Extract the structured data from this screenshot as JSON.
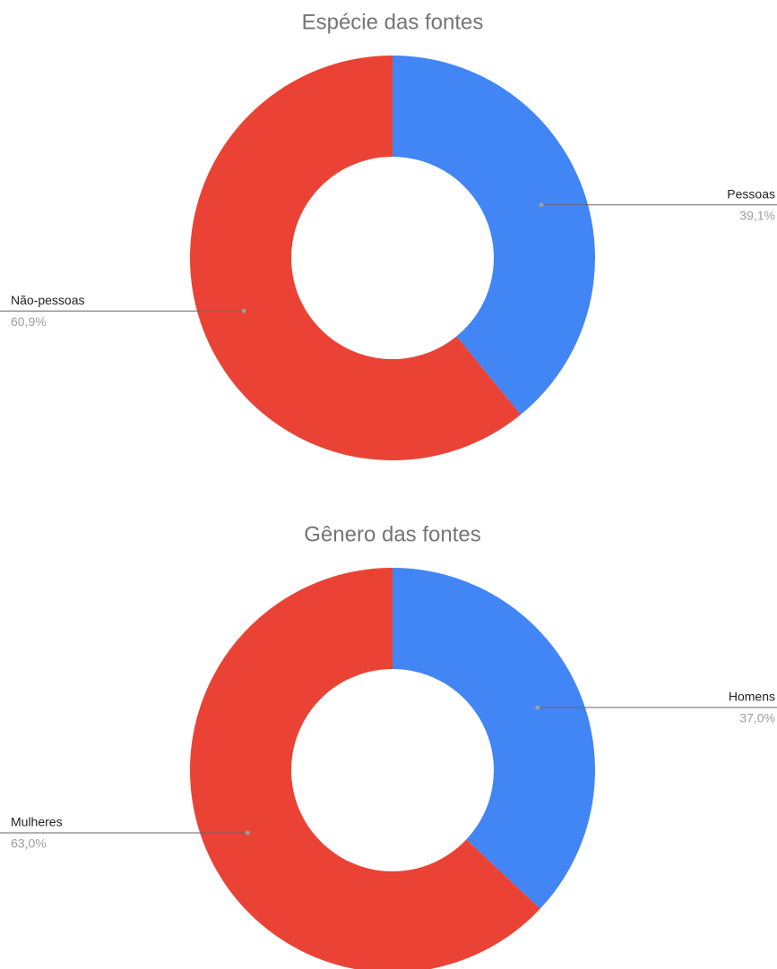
{
  "chart_data": [
    {
      "type": "pie",
      "title": "Espécie das fontes",
      "categories": [
        "Pessoas",
        "Não-pessoas"
      ],
      "values": [
        39.1,
        60.9
      ],
      "value_labels": [
        "39,1%",
        "60,9%"
      ],
      "colors": [
        "#4285f4",
        "#ea4335"
      ]
    },
    {
      "type": "pie",
      "title": "Gênero das fontes",
      "categories": [
        "Homens",
        "Mulheres"
      ],
      "values": [
        37.0,
        63.0
      ],
      "value_labels": [
        "37,0%",
        "63,0%"
      ],
      "colors": [
        "#4285f4",
        "#ea4335"
      ]
    }
  ]
}
